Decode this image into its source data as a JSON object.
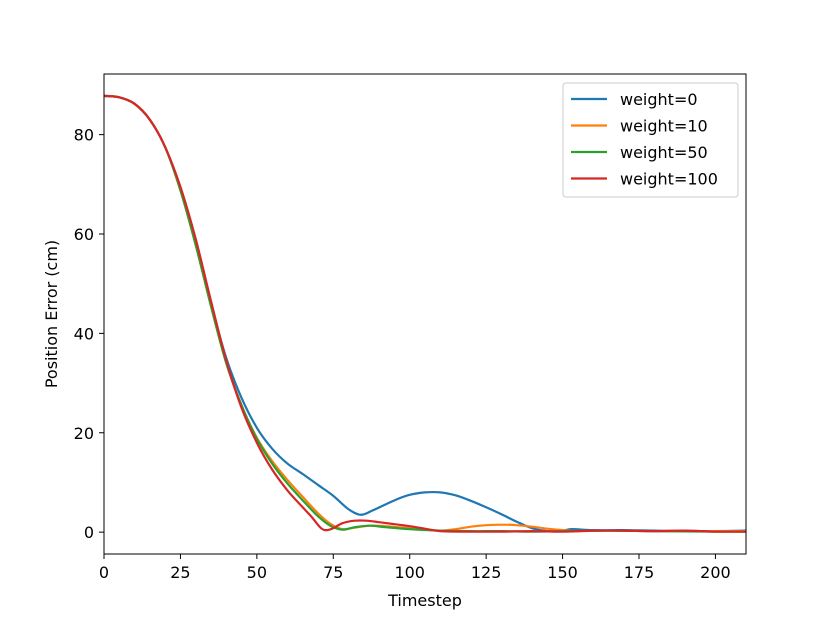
{
  "chart_data": {
    "type": "line",
    "title": "",
    "xlabel": "Timestep",
    "ylabel": "Position Error (cm)",
    "xlim": [
      0,
      210
    ],
    "ylim": [
      -4.4,
      92.2
    ],
    "xticks": [
      0,
      25,
      50,
      75,
      100,
      125,
      150,
      175,
      200
    ],
    "yticks": [
      0,
      20,
      40,
      60,
      80
    ],
    "grid": false,
    "legend_position": "top-right",
    "series": [
      {
        "name": "weight=0",
        "color": "#1f77b4",
        "points": [
          [
            0,
            87.8
          ],
          [
            5,
            87.5
          ],
          [
            10,
            86.2
          ],
          [
            15,
            83.0
          ],
          [
            20,
            77.5
          ],
          [
            25,
            69.0
          ],
          [
            30,
            58.0
          ],
          [
            35,
            46.0
          ],
          [
            40,
            35.0
          ],
          [
            45,
            27.0
          ],
          [
            50,
            21.0
          ],
          [
            55,
            16.8
          ],
          [
            60,
            13.8
          ],
          [
            65,
            11.7
          ],
          [
            70,
            9.5
          ],
          [
            75,
            7.3
          ],
          [
            80,
            4.6
          ],
          [
            84,
            3.5
          ],
          [
            88,
            4.4
          ],
          [
            95,
            6.4
          ],
          [
            100,
            7.5
          ],
          [
            105,
            8.0
          ],
          [
            110,
            8.0
          ],
          [
            115,
            7.4
          ],
          [
            120,
            6.3
          ],
          [
            125,
            5.0
          ],
          [
            130,
            3.6
          ],
          [
            135,
            2.1
          ],
          [
            140,
            0.8
          ],
          [
            145,
            0.2
          ],
          [
            150,
            0.3
          ],
          [
            153,
            0.6
          ],
          [
            160,
            0.4
          ],
          [
            170,
            0.4
          ],
          [
            180,
            0.3
          ],
          [
            190,
            0.2
          ],
          [
            200,
            0.2
          ],
          [
            210,
            0.3
          ]
        ]
      },
      {
        "name": "weight=10",
        "color": "#ff7f0e",
        "points": [
          [
            0,
            87.8
          ],
          [
            5,
            87.5
          ],
          [
            10,
            86.2
          ],
          [
            15,
            83.0
          ],
          [
            20,
            77.5
          ],
          [
            25,
            68.8
          ],
          [
            30,
            57.8
          ],
          [
            35,
            45.5
          ],
          [
            40,
            34.0
          ],
          [
            45,
            25.5
          ],
          [
            50,
            19.0
          ],
          [
            55,
            14.3
          ],
          [
            60,
            10.5
          ],
          [
            65,
            7.1
          ],
          [
            70,
            3.8
          ],
          [
            74,
            1.7
          ],
          [
            78,
            0.6
          ],
          [
            82,
            0.9
          ],
          [
            87,
            1.3
          ],
          [
            92,
            1.2
          ],
          [
            100,
            0.8
          ],
          [
            105,
            0.6
          ],
          [
            110,
            0.3
          ],
          [
            115,
            0.6
          ],
          [
            120,
            1.1
          ],
          [
            125,
            1.4
          ],
          [
            130,
            1.5
          ],
          [
            135,
            1.4
          ],
          [
            140,
            1.1
          ],
          [
            145,
            0.7
          ],
          [
            150,
            0.4
          ],
          [
            155,
            0.2
          ],
          [
            165,
            0.3
          ],
          [
            180,
            0.2
          ],
          [
            200,
            0.2
          ],
          [
            210,
            0.2
          ]
        ]
      },
      {
        "name": "weight=50",
        "color": "#2ca02c",
        "points": [
          [
            0,
            87.8
          ],
          [
            5,
            87.5
          ],
          [
            10,
            86.2
          ],
          [
            15,
            83.0
          ],
          [
            20,
            77.5
          ],
          [
            25,
            68.8
          ],
          [
            30,
            57.8
          ],
          [
            35,
            45.5
          ],
          [
            40,
            34.0
          ],
          [
            45,
            25.5
          ],
          [
            50,
            18.8
          ],
          [
            55,
            13.8
          ],
          [
            60,
            9.8
          ],
          [
            65,
            6.4
          ],
          [
            70,
            3.2
          ],
          [
            74,
            1.3
          ],
          [
            78,
            0.5
          ],
          [
            82,
            1.0
          ],
          [
            87,
            1.3
          ],
          [
            92,
            1.0
          ],
          [
            100,
            0.6
          ],
          [
            110,
            0.3
          ],
          [
            120,
            0.2
          ],
          [
            130,
            0.2
          ],
          [
            140,
            0.1
          ],
          [
            150,
            0.2
          ],
          [
            165,
            0.3
          ],
          [
            180,
            0.2
          ],
          [
            200,
            0.1
          ],
          [
            210,
            0.1
          ]
        ]
      },
      {
        "name": "weight=100",
        "color": "#d62728",
        "points": [
          [
            0,
            87.8
          ],
          [
            5,
            87.5
          ],
          [
            10,
            86.2
          ],
          [
            15,
            83.0
          ],
          [
            20,
            77.5
          ],
          [
            25,
            69.5
          ],
          [
            30,
            59.0
          ],
          [
            35,
            46.5
          ],
          [
            40,
            34.5
          ],
          [
            45,
            25.0
          ],
          [
            50,
            18.0
          ],
          [
            55,
            12.6
          ],
          [
            60,
            8.4
          ],
          [
            65,
            5.0
          ],
          [
            68,
            3.0
          ],
          [
            71,
            0.8
          ],
          [
            73,
            0.4
          ],
          [
            75,
            0.8
          ],
          [
            78,
            1.8
          ],
          [
            82,
            2.3
          ],
          [
            86,
            2.3
          ],
          [
            90,
            2.0
          ],
          [
            95,
            1.6
          ],
          [
            100,
            1.2
          ],
          [
            105,
            0.7
          ],
          [
            110,
            0.2
          ],
          [
            120,
            0.1
          ],
          [
            130,
            0.1
          ],
          [
            140,
            0.2
          ],
          [
            150,
            0.1
          ],
          [
            160,
            0.3
          ],
          [
            170,
            0.3
          ],
          [
            180,
            0.2
          ],
          [
            190,
            0.3
          ],
          [
            200,
            0.1
          ],
          [
            210,
            0.1
          ]
        ]
      }
    ]
  }
}
